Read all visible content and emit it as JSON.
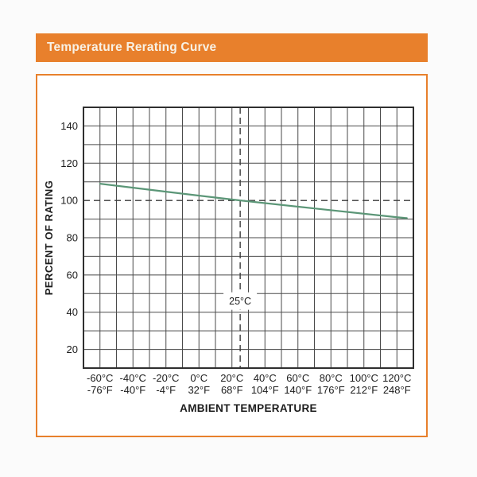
{
  "banner": {
    "title": "Temperature Rerating Curve",
    "bg_color": "#E8802C",
    "text_color": "#F8F1E5"
  },
  "chart_data": {
    "type": "line",
    "title": "Temperature Rerating Curve",
    "xlabel": "AMBIENT TEMPERATURE",
    "ylabel": "PERCENT OF RATING",
    "x_domain": [
      -70,
      130
    ],
    "y_domain": [
      10,
      150
    ],
    "grid": true,
    "grid_step": 10,
    "legend": "none",
    "colors": {
      "curve": "#5B9677",
      "grid": "#4A4A4A",
      "frame": "#2F2F2F",
      "dashed": "#3A3A3A",
      "text": "#1C1C1C",
      "frame_border": "#E8802C",
      "background": "#FFFFFF"
    },
    "x_ticks": [
      {
        "t": -60,
        "c": "-60°C",
        "f": "-76°F"
      },
      {
        "t": -40,
        "c": "-40°C",
        "f": "-40°F"
      },
      {
        "t": -20,
        "c": "-20°C",
        "f": "-4°F"
      },
      {
        "t": 0,
        "c": "0°C",
        "f": "32°F"
      },
      {
        "t": 20,
        "c": "20°C",
        "f": "68°F"
      },
      {
        "t": 40,
        "c": "40°C",
        "f": "104°F"
      },
      {
        "t": 60,
        "c": "60°C",
        "f": "140°F"
      },
      {
        "t": 80,
        "c": "80°C",
        "f": "176°F"
      },
      {
        "t": 100,
        "c": "100°C",
        "f": "212°F"
      },
      {
        "t": 120,
        "c": "120°C",
        "f": "248°F"
      }
    ],
    "y_ticks": [
      140,
      120,
      100,
      80,
      60,
      40,
      20
    ],
    "series": [
      {
        "name": "percent-of-rating-curve",
        "points": [
          [
            -60,
            109
          ],
          [
            -20,
            104.7
          ],
          [
            25,
            100
          ],
          [
            70,
            95.7
          ],
          [
            120,
            91
          ],
          [
            126,
            90.5
          ]
        ]
      }
    ],
    "reference_lines": {
      "horizontal": {
        "value": 100,
        "style": "dashed"
      },
      "vertical": {
        "value": 25,
        "style": "dashed",
        "label": "25°C",
        "label_at_y": 46
      }
    }
  }
}
